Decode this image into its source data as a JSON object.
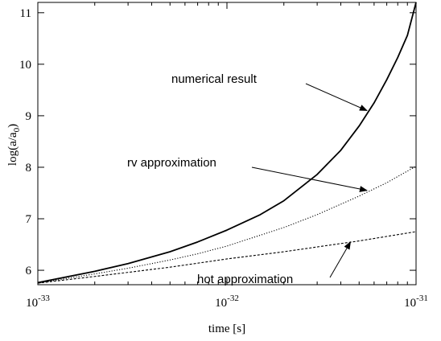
{
  "chart_data": {
    "type": "line",
    "xscale": "log",
    "xlim": [
      1e-33,
      1e-31
    ],
    "ylim": [
      5.72,
      11.2
    ],
    "xlabel": "time [s]",
    "ylabel_main": "log(a/a",
    "ylabel_sub": "0",
    "ylabel_close": ")",
    "xticks": [
      {
        "value": 1e-33,
        "base": "10",
        "exp": "-33"
      },
      {
        "value": 1e-32,
        "base": "10",
        "exp": "-32"
      },
      {
        "value": 1e-31,
        "base": "10",
        "exp": "-31"
      }
    ],
    "yticks": [
      6,
      7,
      8,
      9,
      10,
      11
    ],
    "grid": false,
    "series": [
      {
        "style": "solid",
        "points": [
          [
            1e-33,
            5.76
          ],
          [
            2e-33,
            5.98
          ],
          [
            3e-33,
            6.13
          ],
          [
            5e-33,
            6.36
          ],
          [
            7e-33,
            6.55
          ],
          [
            1e-32,
            6.78
          ],
          [
            1.5e-32,
            7.08
          ],
          [
            2e-32,
            7.35
          ],
          [
            3e-32,
            7.86
          ],
          [
            4e-32,
            8.33
          ],
          [
            5e-32,
            8.8
          ],
          [
            6e-32,
            9.25
          ],
          [
            7e-32,
            9.7
          ],
          [
            8e-32,
            10.13
          ],
          [
            9e-32,
            10.56
          ],
          [
            1e-31,
            11.2
          ]
        ]
      },
      {
        "style": "dotted",
        "points": [
          [
            1e-33,
            5.75
          ],
          [
            2e-33,
            5.93
          ],
          [
            3e-33,
            6.04
          ],
          [
            5e-33,
            6.2
          ],
          [
            7e-33,
            6.32
          ],
          [
            1e-32,
            6.47
          ],
          [
            2e-32,
            6.83
          ],
          [
            3e-32,
            7.08
          ],
          [
            5e-32,
            7.44
          ],
          [
            7e-32,
            7.7
          ],
          [
            1e-31,
            8.02
          ]
        ]
      },
      {
        "style": "dashed",
        "points": [
          [
            1e-33,
            5.75
          ],
          [
            2e-33,
            5.88
          ],
          [
            5e-33,
            6.06
          ],
          [
            1e-32,
            6.22
          ],
          [
            2e-32,
            6.36
          ],
          [
            5e-32,
            6.57
          ],
          [
            1e-31,
            6.75
          ]
        ]
      }
    ],
    "annotations": [
      {
        "text": "numerical result",
        "target": [
          5.5e-32,
          9.1
        ]
      },
      {
        "text": "rv approximation",
        "target": [
          5.5e-32,
          7.55
        ]
      },
      {
        "text": "hot approximation",
        "target": [
          4.5e-32,
          6.55
        ]
      }
    ]
  }
}
